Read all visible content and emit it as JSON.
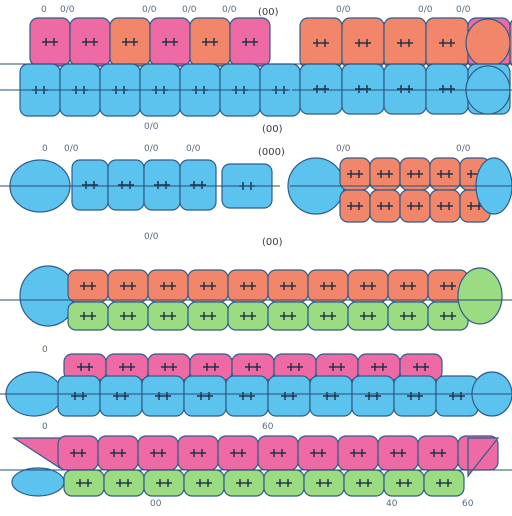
{
  "colors": {
    "blue": "#5cc3ee",
    "red": "#f2866a",
    "pink": "#ee6aa5",
    "green": "#9bdc82",
    "axis": "#2a4d78",
    "tick": "#1e2e44",
    "outline": "#2f5d8a"
  },
  "labels": {
    "top_left_a": "0",
    "top_left_b": "0/0",
    "top_left_c": "0/0",
    "top_left_d": "0/0",
    "top_left_e": "0/0",
    "top_right_a": "(00)",
    "top_right_b": "0/0",
    "top_right_c": "0/0",
    "top_right_d": "0/0",
    "row1_below": "0/0",
    "row1_mid": "(00)",
    "row2_top_a": "0",
    "row2_top_b": "0/0",
    "row2_top_c": "0/0",
    "row2_top_d": "0/0",
    "row2_mid": "(000)",
    "row2_right_a": "0/0",
    "row2_right_b": "0/0",
    "row2_below": "0/0",
    "row3_mid": "(00)",
    "row4_top_a": "0",
    "row5_top_a": "0",
    "row5_top_b": "60",
    "bottom_a": "00",
    "bottom_b": "40",
    "bottom_c": "60"
  }
}
